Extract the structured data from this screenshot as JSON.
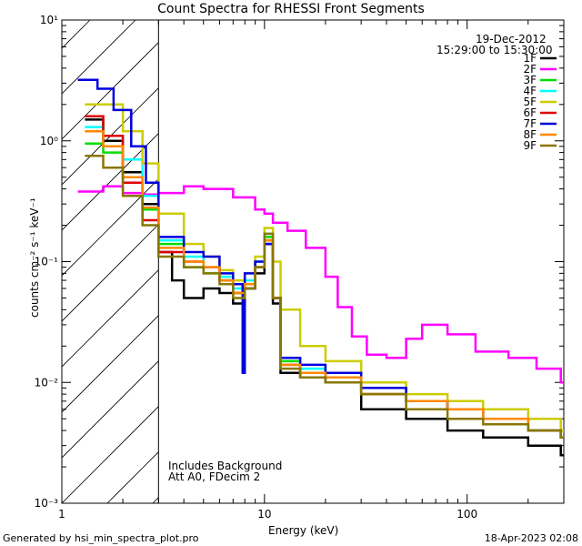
{
  "chart_data": {
    "type": "line",
    "title": "Count Spectra for RHESSI Front Segments",
    "xlabel": "Energy (keV)",
    "ylabel": "counts cm⁻² s⁻¹ keV⁻¹",
    "xscale": "log",
    "yscale": "log",
    "xlim": [
      1,
      300
    ],
    "ylim": [
      0.001,
      10
    ],
    "x_ticks": [
      "1",
      "10",
      "100"
    ],
    "y_ticks": [
      "10⁻³",
      "10⁻²",
      "10⁻¹",
      "10⁰",
      "10¹"
    ],
    "shaded_below_keV": 3,
    "date": "19-Dec-2012",
    "time_range": "15:29:00 to 15:30:00",
    "legend_position": "top-right",
    "annotation_lines": [
      "Includes Background",
      "Att A0, FDecim 2"
    ],
    "series": [
      {
        "name": "1F",
        "color": "#000000",
        "points": [
          [
            1.3,
            1.5
          ],
          [
            1.6,
            1.0
          ],
          [
            2,
            0.55
          ],
          [
            2.5,
            0.3
          ],
          [
            3,
            0.12
          ],
          [
            3.5,
            0.07
          ],
          [
            4,
            0.05
          ],
          [
            5,
            0.06
          ],
          [
            6,
            0.055
          ],
          [
            7,
            0.045
          ],
          [
            8,
            0.06
          ],
          [
            9,
            0.08
          ],
          [
            10,
            0.14
          ],
          [
            11,
            0.045
          ],
          [
            12,
            0.012
          ],
          [
            15,
            0.011
          ],
          [
            20,
            0.01
          ],
          [
            30,
            0.006
          ],
          [
            50,
            0.005
          ],
          [
            80,
            0.004
          ],
          [
            120,
            0.0035
          ],
          [
            200,
            0.003
          ],
          [
            290,
            0.0025
          ]
        ]
      },
      {
        "name": "2F",
        "color": "#ff00ff",
        "points": [
          [
            1.2,
            0.38
          ],
          [
            1.6,
            0.42
          ],
          [
            2,
            0.37
          ],
          [
            2.5,
            0.36
          ],
          [
            3,
            0.37
          ],
          [
            4,
            0.42
          ],
          [
            5,
            0.4
          ],
          [
            7,
            0.34
          ],
          [
            9,
            0.27
          ],
          [
            10,
            0.25
          ],
          [
            11,
            0.21
          ],
          [
            13,
            0.18
          ],
          [
            16,
            0.13
          ],
          [
            20,
            0.075
          ],
          [
            23,
            0.042
          ],
          [
            27,
            0.024
          ],
          [
            32,
            0.017
          ],
          [
            40,
            0.016
          ],
          [
            50,
            0.023
          ],
          [
            60,
            0.03
          ],
          [
            80,
            0.025
          ],
          [
            110,
            0.018
          ],
          [
            160,
            0.016
          ],
          [
            220,
            0.013
          ],
          [
            290,
            0.01
          ]
        ]
      },
      {
        "name": "3F",
        "color": "#00dd00",
        "points": [
          [
            1.3,
            0.95
          ],
          [
            1.6,
            0.8
          ],
          [
            2,
            0.5
          ],
          [
            2.5,
            0.27
          ],
          [
            3,
            0.14
          ],
          [
            4,
            0.09
          ],
          [
            5,
            0.08
          ],
          [
            6,
            0.07
          ],
          [
            7,
            0.055
          ],
          [
            8,
            0.065
          ],
          [
            9,
            0.09
          ],
          [
            10,
            0.16
          ],
          [
            11,
            0.05
          ],
          [
            12,
            0.015
          ],
          [
            15,
            0.012
          ],
          [
            20,
            0.011
          ],
          [
            30,
            0.008
          ],
          [
            50,
            0.007
          ],
          [
            80,
            0.006
          ],
          [
            120,
            0.005
          ],
          [
            200,
            0.004
          ],
          [
            290,
            0.0035
          ]
        ]
      },
      {
        "name": "4F",
        "color": "#00ffff",
        "points": [
          [
            1.3,
            1.3
          ],
          [
            1.6,
            1.1
          ],
          [
            2,
            0.7
          ],
          [
            2.5,
            0.35
          ],
          [
            3,
            0.15
          ],
          [
            4,
            0.11
          ],
          [
            5,
            0.09
          ],
          [
            6,
            0.075
          ],
          [
            7,
            0.06
          ],
          [
            8,
            0.07
          ],
          [
            9,
            0.1
          ],
          [
            10,
            0.17
          ],
          [
            11,
            0.05
          ],
          [
            12,
            0.016
          ],
          [
            15,
            0.013
          ],
          [
            20,
            0.012
          ],
          [
            30,
            0.009
          ],
          [
            50,
            0.007
          ],
          [
            80,
            0.006
          ],
          [
            120,
            0.005
          ],
          [
            200,
            0.004
          ],
          [
            290,
            0.0035
          ]
        ]
      },
      {
        "name": "5F",
        "color": "#cccc00",
        "points": [
          [
            1.3,
            2.0
          ],
          [
            1.6,
            2.0
          ],
          [
            2,
            1.2
          ],
          [
            2.5,
            0.65
          ],
          [
            3,
            0.25
          ],
          [
            4,
            0.14
          ],
          [
            5,
            0.11
          ],
          [
            6,
            0.085
          ],
          [
            7,
            0.07
          ],
          [
            8,
            0.08
          ],
          [
            9,
            0.11
          ],
          [
            10,
            0.19
          ],
          [
            11,
            0.1
          ],
          [
            12,
            0.04
          ],
          [
            15,
            0.02
          ],
          [
            20,
            0.015
          ],
          [
            30,
            0.01
          ],
          [
            50,
            0.008
          ],
          [
            80,
            0.007
          ],
          [
            120,
            0.006
          ],
          [
            200,
            0.005
          ],
          [
            290,
            0.004
          ]
        ]
      },
      {
        "name": "6F",
        "color": "#dd0000",
        "points": [
          [
            1.3,
            1.6
          ],
          [
            1.6,
            1.1
          ],
          [
            2,
            0.45
          ],
          [
            2.5,
            0.22
          ],
          [
            3,
            0.12
          ],
          [
            4,
            0.1
          ],
          [
            5,
            0.09
          ],
          [
            6,
            0.07
          ],
          [
            7,
            0.055
          ],
          [
            8,
            0.065
          ],
          [
            9,
            0.09
          ],
          [
            10,
            0.15
          ],
          [
            11,
            0.05
          ],
          [
            12,
            0.014
          ],
          [
            15,
            0.012
          ],
          [
            20,
            0.011
          ],
          [
            30,
            0.008
          ],
          [
            50,
            0.007
          ],
          [
            80,
            0.006
          ],
          [
            120,
            0.005
          ],
          [
            200,
            0.004
          ],
          [
            290,
            0.0035
          ]
        ]
      },
      {
        "name": "7F",
        "color": "#0000dd",
        "points": [
          [
            1.2,
            3.2
          ],
          [
            1.5,
            2.7
          ],
          [
            1.8,
            1.8
          ],
          [
            2.2,
            0.9
          ],
          [
            2.6,
            0.45
          ],
          [
            3,
            0.16
          ],
          [
            4,
            0.12
          ],
          [
            5,
            0.11
          ],
          [
            6,
            0.08
          ],
          [
            7,
            0.065
          ],
          [
            7.8,
            0.012
          ],
          [
            8,
            0.08
          ],
          [
            9,
            0.1
          ],
          [
            10,
            0.14
          ],
          [
            11,
            0.05
          ],
          [
            12,
            0.016
          ],
          [
            15,
            0.014
          ],
          [
            20,
            0.012
          ],
          [
            30,
            0.009
          ],
          [
            50,
            0.007
          ],
          [
            80,
            0.006
          ],
          [
            120,
            0.005
          ],
          [
            200,
            0.004
          ],
          [
            290,
            0.0035
          ]
        ]
      },
      {
        "name": "8F",
        "color": "#ff8800",
        "points": [
          [
            1.3,
            1.2
          ],
          [
            1.6,
            0.9
          ],
          [
            2,
            0.5
          ],
          [
            2.5,
            0.28
          ],
          [
            3,
            0.13
          ],
          [
            4,
            0.1
          ],
          [
            5,
            0.09
          ],
          [
            6,
            0.07
          ],
          [
            7,
            0.055
          ],
          [
            8,
            0.065
          ],
          [
            9,
            0.09
          ],
          [
            10,
            0.15
          ],
          [
            11,
            0.05
          ],
          [
            12,
            0.014
          ],
          [
            15,
            0.012
          ],
          [
            20,
            0.011
          ],
          [
            30,
            0.008
          ],
          [
            50,
            0.007
          ],
          [
            80,
            0.006
          ],
          [
            120,
            0.005
          ],
          [
            200,
            0.004
          ],
          [
            290,
            0.0035
          ]
        ]
      },
      {
        "name": "9F",
        "color": "#887700",
        "points": [
          [
            1.3,
            0.75
          ],
          [
            1.6,
            0.6
          ],
          [
            2,
            0.35
          ],
          [
            2.5,
            0.2
          ],
          [
            3,
            0.11
          ],
          [
            4,
            0.09
          ],
          [
            5,
            0.08
          ],
          [
            6,
            0.065
          ],
          [
            7,
            0.05
          ],
          [
            8,
            0.06
          ],
          [
            9,
            0.09
          ],
          [
            10,
            0.17
          ],
          [
            11,
            0.05
          ],
          [
            12,
            0.013
          ],
          [
            15,
            0.011
          ],
          [
            20,
            0.01
          ],
          [
            30,
            0.008
          ],
          [
            50,
            0.006
          ],
          [
            80,
            0.005
          ],
          [
            120,
            0.0045
          ],
          [
            200,
            0.004
          ],
          [
            290,
            0.0035
          ]
        ]
      }
    ]
  },
  "footer": {
    "left": "Generated by hsi_min_spectra_plot.pro",
    "right": "18-Apr-2023 02:08"
  }
}
